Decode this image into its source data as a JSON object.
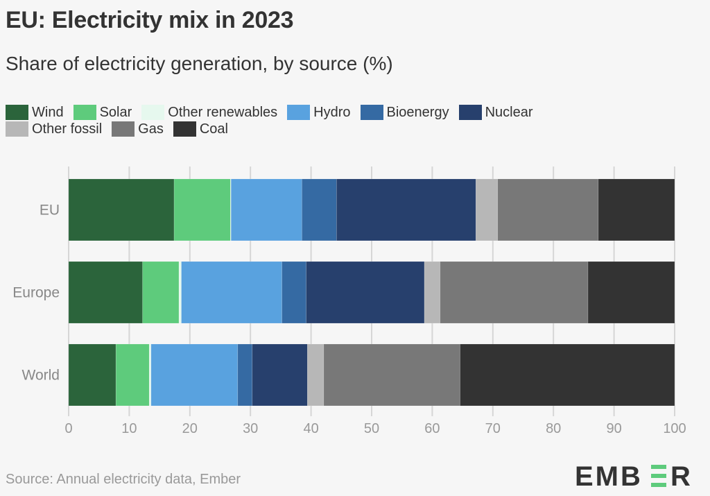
{
  "title": "EU: Electricity mix in 2023",
  "subtitle": "Share of electricity generation, by source (%)",
  "source": "Source: Annual electricity data, Ember",
  "logo": {
    "text": "EMBER",
    "accent_color": "#5ecb7c",
    "text_color": "#333333"
  },
  "legend": [
    [
      {
        "label": "Wind",
        "color": "#2b643b"
      },
      {
        "label": "Solar",
        "color": "#5ecb7c"
      },
      {
        "label": "Other renewables",
        "color": "#e6f8ee"
      },
      {
        "label": "Hydro",
        "color": "#59a2df"
      },
      {
        "label": "Bioenergy",
        "color": "#356aa3"
      },
      {
        "label": "Nuclear",
        "color": "#27406d"
      }
    ],
    [
      {
        "label": "Other fossil",
        "color": "#b7b7b7"
      },
      {
        "label": "Gas",
        "color": "#787878"
      },
      {
        "label": "Coal",
        "color": "#333333"
      }
    ]
  ],
  "chart_data": {
    "type": "bar",
    "orientation": "horizontal",
    "stacked": true,
    "title": "EU: Electricity mix in 2023",
    "subtitle": "Share of electricity generation, by source (%)",
    "xlabel": "",
    "ylabel": "",
    "xlim": [
      0,
      100
    ],
    "xticks": [
      0,
      10,
      20,
      30,
      40,
      50,
      60,
      70,
      80,
      90,
      100
    ],
    "grid": true,
    "legend_position": "top-left",
    "categories": [
      "EU",
      "Europe",
      "World"
    ],
    "series": [
      {
        "name": "Wind",
        "color": "#2b643b",
        "values": [
          17.4,
          12.2,
          7.8
        ]
      },
      {
        "name": "Solar",
        "color": "#5ecb7c",
        "values": [
          9.3,
          6.0,
          5.5
        ]
      },
      {
        "name": "Other renewables",
        "color": "#e6f8ee",
        "values": [
          0.1,
          0.4,
          0.3
        ]
      },
      {
        "name": "Hydro",
        "color": "#59a2df",
        "values": [
          11.7,
          16.6,
          14.3
        ]
      },
      {
        "name": "Bioenergy",
        "color": "#356aa3",
        "values": [
          5.7,
          4.0,
          2.4
        ]
      },
      {
        "name": "Nuclear",
        "color": "#27406d",
        "values": [
          23.0,
          19.5,
          9.1
        ]
      },
      {
        "name": "Other fossil",
        "color": "#b7b7b7",
        "values": [
          3.6,
          2.6,
          2.7
        ]
      },
      {
        "name": "Gas",
        "color": "#787878",
        "values": [
          16.6,
          24.4,
          22.5
        ]
      },
      {
        "name": "Coal",
        "color": "#333333",
        "values": [
          12.6,
          14.3,
          35.4
        ]
      }
    ]
  }
}
